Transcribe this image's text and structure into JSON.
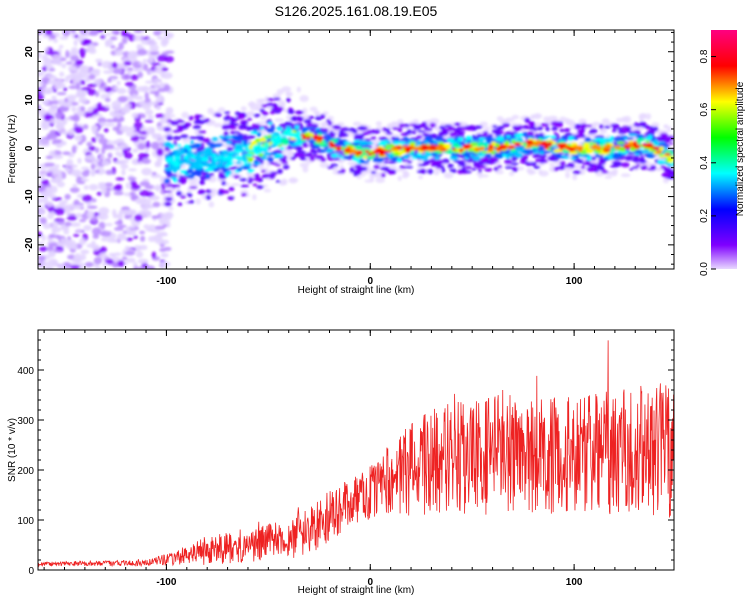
{
  "title": "S126.2025.161.08.19.E05",
  "colors": {
    "axis": "#000000",
    "snr_line": "#ee2222",
    "spec_low": "#e0ccff",
    "spec_mid": "#7f00ff",
    "spec_high": "#ff0000"
  },
  "chart_data": [
    {
      "type": "heatmap",
      "xlabel": "Height of straight line (km)",
      "ylabel": "Frequency (Hz)",
      "xlim": [
        -163,
        149
      ],
      "ylim": [
        -25,
        24.5
      ],
      "x_ticks": [
        -100,
        0,
        100
      ],
      "y_ticks": [
        -20,
        -10,
        0,
        10,
        20
      ],
      "colorbar": {
        "label": "Normalized spectral amplitude",
        "range": [
          0,
          0.9
        ],
        "ticks": [
          "0.0",
          "0.2",
          "0.4",
          "0.6",
          "0.8"
        ],
        "colors": [
          "#e8d8ff",
          "#7f00ff",
          "#0000ff",
          "#00ffff",
          "#00ff00",
          "#ffff00",
          "#ff0000",
          "#ff0080"
        ]
      },
      "ridge": [
        {
          "x": -163,
          "f": null
        },
        {
          "x": -100,
          "f": -3
        },
        {
          "x": -80,
          "f": -2
        },
        {
          "x": -60,
          "f": -1
        },
        {
          "x": -40,
          "f": 3
        },
        {
          "x": -25,
          "f": 2
        },
        {
          "x": -15,
          "f": 0
        },
        {
          "x": 0,
          "f": -1
        },
        {
          "x": 20,
          "f": 0
        },
        {
          "x": 60,
          "f": 0
        },
        {
          "x": 80,
          "f": 1
        },
        {
          "x": 100,
          "f": 0
        },
        {
          "x": 120,
          "f": 0
        },
        {
          "x": 135,
          "f": 1
        },
        {
          "x": 149,
          "f": -2
        }
      ],
      "noise_region": {
        "x": [
          -163,
          -98
        ],
        "f": [
          -25,
          24.5
        ]
      }
    },
    {
      "type": "line",
      "xlabel": "Height of straight line (km)",
      "ylabel": "SNR (10 * v/v)",
      "xlim": [
        -163,
        149
      ],
      "ylim": [
        0,
        480
      ],
      "x_ticks": [
        -100,
        0,
        100
      ],
      "y_ticks": [
        0,
        100,
        200,
        300,
        400
      ],
      "envelope": [
        {
          "x": -163,
          "mean": 12,
          "amp": 4
        },
        {
          "x": -110,
          "mean": 14,
          "amp": 6
        },
        {
          "x": -95,
          "mean": 25,
          "amp": 15
        },
        {
          "x": -80,
          "mean": 40,
          "amp": 30
        },
        {
          "x": -60,
          "mean": 50,
          "amp": 35
        },
        {
          "x": -40,
          "mean": 60,
          "amp": 40
        },
        {
          "x": -25,
          "mean": 95,
          "amp": 55
        },
        {
          "x": -15,
          "mean": 120,
          "amp": 50
        },
        {
          "x": -5,
          "mean": 145,
          "amp": 50
        },
        {
          "x": 10,
          "mean": 180,
          "amp": 75
        },
        {
          "x": 30,
          "mean": 220,
          "amp": 110
        },
        {
          "x": 60,
          "mean": 230,
          "amp": 120
        },
        {
          "x": 100,
          "mean": 230,
          "amp": 120
        },
        {
          "x": 149,
          "mean": 240,
          "amp": 140
        }
      ]
    }
  ]
}
